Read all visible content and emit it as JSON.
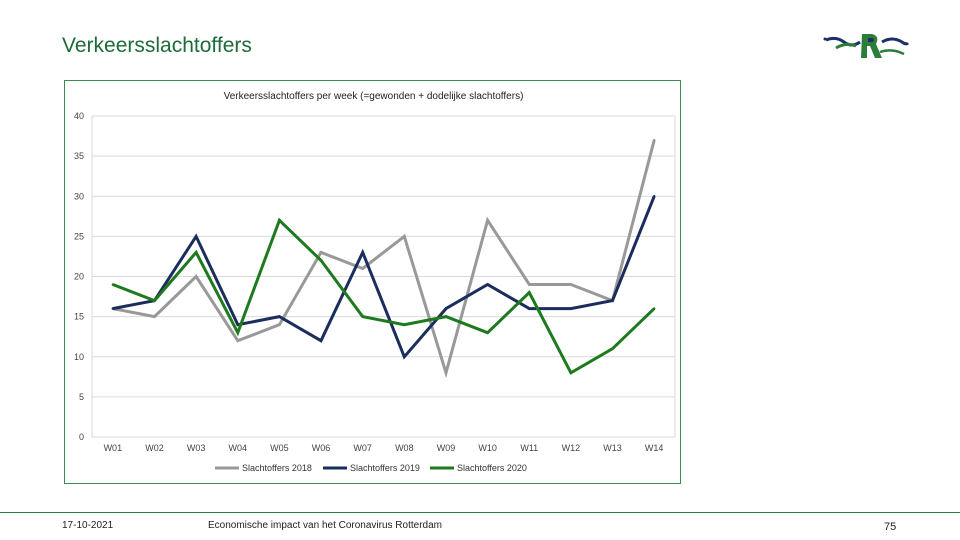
{
  "slide": {
    "title": "Verkeersslachtoffers",
    "footer_date": "17-10-2021",
    "footer_center": "Economische impact van het Coronavirus Rotterdam",
    "page_number": "75"
  },
  "logo": {
    "icon": "rotterdam-lion-logo-icon",
    "colors": [
      "#1d2f66",
      "#2b7d3a"
    ]
  },
  "chart_data": {
    "type": "line",
    "title": "Verkeersslachtoffers per week (=gewonden + dodelijke slachtoffers)",
    "categories": [
      "W01",
      "W02",
      "W03",
      "W04",
      "W05",
      "W06",
      "W07",
      "W08",
      "W09",
      "W10",
      "W11",
      "W12",
      "W13",
      "W14"
    ],
    "ylim": [
      0,
      40
    ],
    "yticks": [
      0,
      5,
      10,
      15,
      20,
      25,
      30,
      35,
      40
    ],
    "grid": true,
    "legend_position": "bottom",
    "series": [
      {
        "name": "Slachtoffers 2018",
        "color": "#999999",
        "values": [
          16,
          15,
          20,
          12,
          14,
          23,
          21,
          25,
          8,
          27,
          19,
          19,
          17,
          37
        ]
      },
      {
        "name": "Slachtoffers 2019",
        "color": "#1b2d5c",
        "values": [
          16,
          17,
          25,
          14,
          15,
          12,
          23,
          10,
          16,
          19,
          16,
          16,
          17,
          30
        ]
      },
      {
        "name": "Slachtoffers 2020",
        "color": "#1e7a1e",
        "values": [
          19,
          17,
          23,
          13,
          27,
          22,
          15,
          14,
          15,
          13,
          18,
          8,
          11,
          16
        ]
      }
    ]
  }
}
